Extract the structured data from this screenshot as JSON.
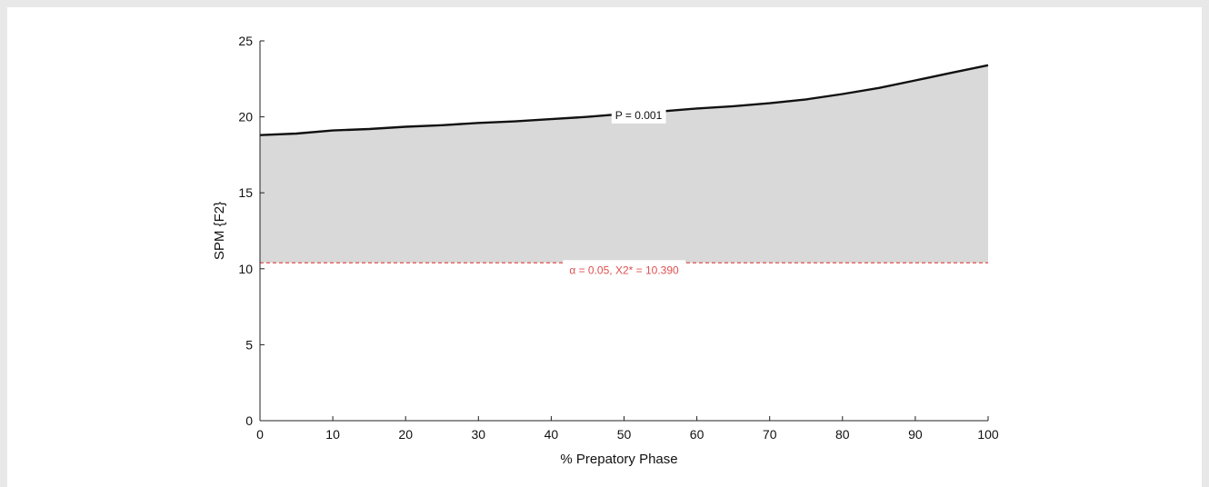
{
  "chart_data": {
    "type": "area",
    "xlabel": "% Prepatory Phase",
    "ylabel": "SPM {F2}",
    "xlim": [
      0,
      100
    ],
    "ylim": [
      0,
      25
    ],
    "x_ticks": [
      "0",
      "10",
      "20",
      "30",
      "40",
      "50",
      "60",
      "70",
      "80",
      "90",
      "100"
    ],
    "y_ticks": [
      "0",
      "5",
      "10",
      "15",
      "20",
      "25"
    ],
    "grid": false,
    "series": [
      {
        "x": [
          0,
          5,
          10,
          15,
          20,
          25,
          30,
          35,
          40,
          45,
          50,
          55,
          60,
          65,
          70,
          75,
          80,
          85,
          90,
          95,
          100
        ],
        "values": [
          18.8,
          18.9,
          19.1,
          19.2,
          19.35,
          19.45,
          19.6,
          19.7,
          19.85,
          20.0,
          20.2,
          20.35,
          20.55,
          20.7,
          20.9,
          21.15,
          21.5,
          21.9,
          22.4,
          22.9,
          23.4
        ],
        "color": "#111111",
        "fill": "#d9d9d9"
      }
    ],
    "threshold": {
      "value": 10.39,
      "color": "#e05050",
      "label": "α = 0.05,     X2* = 10.390"
    },
    "annotations": [
      {
        "text": "P = 0.001",
        "x": 52,
        "y": 20.1,
        "color": "#111111"
      }
    ]
  }
}
